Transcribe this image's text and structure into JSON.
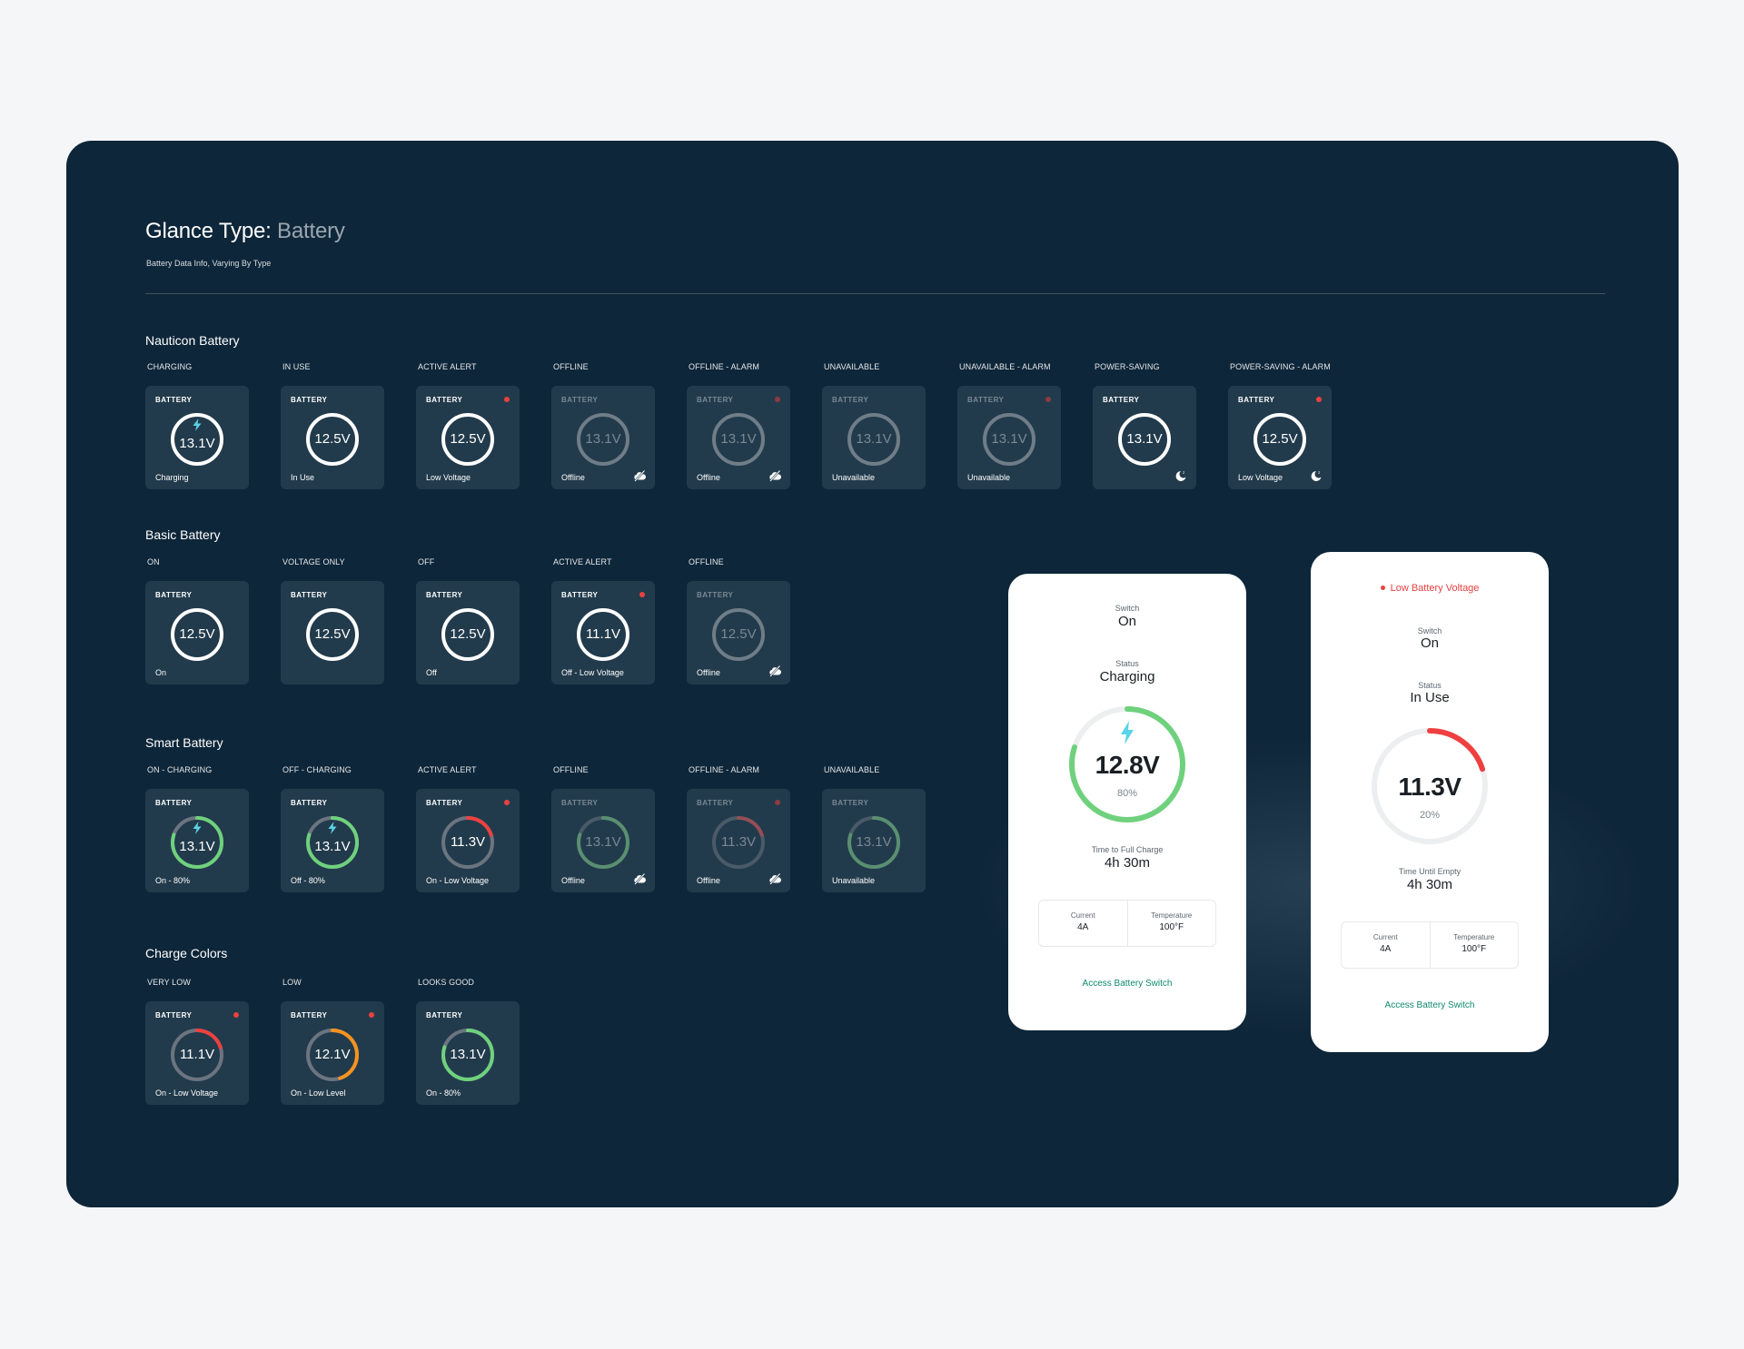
{
  "header": {
    "title_prefix": "Glance Type:",
    "title_accent": "Battery",
    "subtitle": "Battery Data Info, Varying By Type"
  },
  "colors": {
    "background": "#0e2639",
    "tile": "#223b4c",
    "ring_white": "#ffffff",
    "ring_dim": "#6f7d88",
    "ring_track": "#6b7480",
    "green": "#6fd17d",
    "red": "#ee4040",
    "orange": "#f7931e",
    "bolt": "#5ad4e6",
    "link": "#0e8a6e"
  },
  "sections": {
    "nauticon": {
      "title": "Nauticon Battery",
      "tiles": [
        {
          "state": "CHARGING",
          "header": "BATTERY",
          "value": "13.1V",
          "footer": "Charging",
          "style": "white",
          "bolt": true,
          "alert": false,
          "dim": false,
          "icon": ""
        },
        {
          "state": "IN USE",
          "header": "BATTERY",
          "value": "12.5V",
          "footer": "In Use",
          "style": "white",
          "bolt": false,
          "alert": false,
          "dim": false,
          "icon": ""
        },
        {
          "state": "ACTIVE ALERT",
          "header": "BATTERY",
          "value": "12.5V",
          "footer": "Low Voltage",
          "style": "white",
          "bolt": false,
          "alert": true,
          "dim": false,
          "icon": ""
        },
        {
          "state": "OFFLINE",
          "header": "BATTERY",
          "value": "13.1V",
          "footer": "Offline",
          "style": "dim",
          "bolt": false,
          "alert": false,
          "dim": true,
          "icon": "cloud-off-icon"
        },
        {
          "state": "OFFLINE - ALARM",
          "header": "BATTERY",
          "value": "13.1V",
          "footer": "Offline",
          "style": "dim",
          "bolt": false,
          "alert": true,
          "dim": true,
          "icon": "cloud-off-icon"
        },
        {
          "state": "UNAVAILABLE",
          "header": "BATTERY",
          "value": "13.1V",
          "footer": "Unavailable",
          "style": "dim",
          "bolt": false,
          "alert": false,
          "dim": true,
          "icon": ""
        },
        {
          "state": "UNAVAILABLE - ALARM",
          "header": "BATTERY",
          "value": "13.1V",
          "footer": "Unavailable",
          "style": "dim",
          "bolt": false,
          "alert": true,
          "dim": true,
          "icon": ""
        },
        {
          "state": "POWER-SAVING",
          "header": "BATTERY",
          "value": "13.1V",
          "footer": "",
          "style": "white",
          "bolt": false,
          "alert": false,
          "dim": false,
          "icon": "sleep-moon-icon"
        },
        {
          "state": "POWER-SAVING - ALARM",
          "header": "BATTERY",
          "value": "12.5V",
          "footer": "Low Voltage",
          "style": "white",
          "bolt": false,
          "alert": true,
          "dim": false,
          "icon": "sleep-moon-icon"
        }
      ]
    },
    "basic": {
      "title": "Basic Battery",
      "tiles": [
        {
          "state": "ON",
          "header": "BATTERY",
          "value": "12.5V",
          "footer": "On",
          "style": "white",
          "bolt": false,
          "alert": false,
          "dim": false,
          "icon": ""
        },
        {
          "state": "VOLTAGE ONLY",
          "header": "BATTERY",
          "value": "12.5V",
          "footer": "",
          "style": "white",
          "bolt": false,
          "alert": false,
          "dim": false,
          "icon": ""
        },
        {
          "state": "OFF",
          "header": "BATTERY",
          "value": "12.5V",
          "footer": "Off",
          "style": "white",
          "bolt": false,
          "alert": false,
          "dim": false,
          "icon": ""
        },
        {
          "state": "ACTIVE ALERT",
          "header": "BATTERY",
          "value": "11.1V",
          "footer": "Off - Low Voltage",
          "style": "white",
          "bolt": false,
          "alert": true,
          "dim": false,
          "icon": ""
        },
        {
          "state": "OFFLINE",
          "header": "BATTERY",
          "value": "12.5V",
          "footer": "Offline",
          "style": "dim",
          "bolt": false,
          "alert": false,
          "dim": true,
          "icon": "cloud-off-icon"
        }
      ]
    },
    "smart": {
      "title": "Smart Battery",
      "tiles": [
        {
          "state": "ON - CHARGING",
          "header": "BATTERY",
          "value": "13.1V",
          "footer": "On - 80%",
          "style": "green",
          "level": 0.8,
          "bolt": true,
          "alert": false,
          "dim": false,
          "icon": ""
        },
        {
          "state": "OFF - CHARGING",
          "header": "BATTERY",
          "value": "13.1V",
          "footer": "Off - 80%",
          "style": "green",
          "level": 0.8,
          "bolt": true,
          "alert": false,
          "dim": false,
          "icon": ""
        },
        {
          "state": "ACTIVE ALERT",
          "header": "BATTERY",
          "value": "11.3V",
          "footer": "On - Low Voltage",
          "style": "red",
          "level": 0.2,
          "bolt": false,
          "alert": true,
          "dim": false,
          "icon": ""
        },
        {
          "state": "OFFLINE",
          "header": "BATTERY",
          "value": "13.1V",
          "footer": "Offline",
          "style": "green-dim",
          "level": 0.8,
          "bolt": false,
          "alert": false,
          "dim": true,
          "icon": "cloud-off-icon"
        },
        {
          "state": "OFFLINE - ALARM",
          "header": "BATTERY",
          "value": "11.3V",
          "footer": "Offline",
          "style": "red-dim",
          "level": 0.2,
          "bolt": false,
          "alert": true,
          "dim": true,
          "icon": "cloud-off-icon"
        },
        {
          "state": "UNAVAILABLE",
          "header": "BATTERY",
          "value": "13.1V",
          "footer": "Unavailable",
          "style": "green-dim",
          "level": 0.8,
          "bolt": false,
          "alert": false,
          "dim": true,
          "icon": ""
        }
      ]
    },
    "charge_colors": {
      "title": "Charge Colors",
      "tiles": [
        {
          "state": "VERY LOW",
          "header": "BATTERY",
          "value": "11.1V",
          "footer": "On - Low Voltage",
          "style": "red",
          "level": 0.2,
          "bolt": false,
          "alert": true,
          "dim": false,
          "icon": ""
        },
        {
          "state": "LOW",
          "header": "BATTERY",
          "value": "12.1V",
          "footer": "On - Low Level",
          "style": "orange",
          "level": 0.45,
          "bolt": false,
          "alert": true,
          "dim": false,
          "icon": ""
        },
        {
          "state": "LOOKS GOOD",
          "header": "BATTERY",
          "value": "13.1V",
          "footer": "On - 80%",
          "style": "green",
          "level": 0.8,
          "bolt": false,
          "alert": false,
          "dim": false,
          "icon": ""
        }
      ]
    }
  },
  "phones": {
    "charging": {
      "switch_label": "Switch",
      "switch_value": "On",
      "status_label": "Status",
      "status_value": "Charging",
      "voltage": "12.8V",
      "percent": "80%",
      "level": 0.8,
      "time_label": "Time to Full Charge",
      "time_value": "4h 30m",
      "current_label": "Current",
      "current_value": "4A",
      "temp_label": "Temperature",
      "temp_value": "100°F",
      "link": "Access Battery Switch"
    },
    "low": {
      "alert": "Low Battery Voltage",
      "switch_label": "Switch",
      "switch_value": "On",
      "status_label": "Status",
      "status_value": "In Use",
      "voltage": "11.3V",
      "percent": "20%",
      "level": 0.2,
      "time_label": "Time Until Empty",
      "time_value": "4h 30m",
      "current_label": "Current",
      "current_value": "4A",
      "temp_label": "Temperature",
      "temp_value": "100°F",
      "link": "Access Battery Switch"
    }
  }
}
